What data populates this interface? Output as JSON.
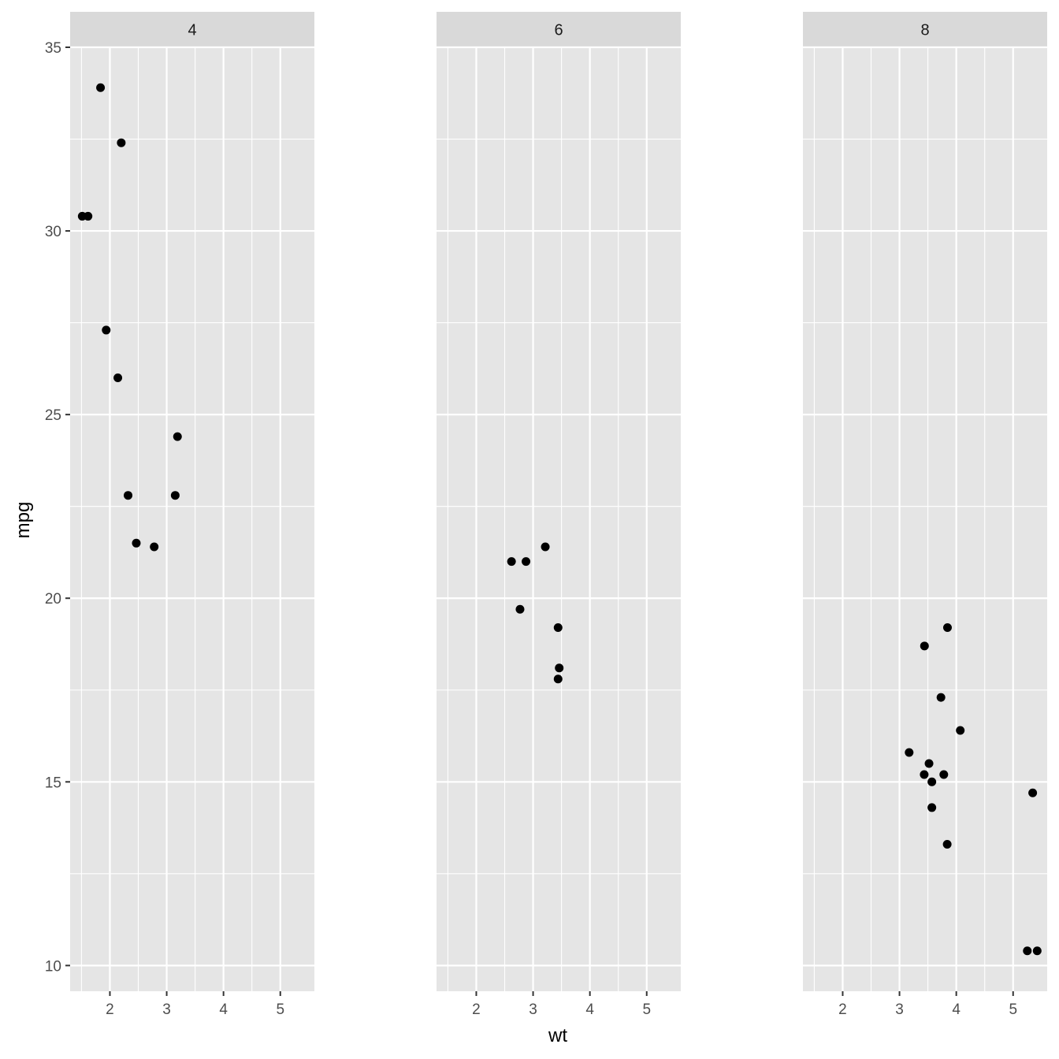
{
  "chart_data": {
    "type": "scatter",
    "facet_by": "cyl",
    "xlabel": "wt",
    "ylabel": "mpg",
    "xlim": [
      1.3,
      5.6
    ],
    "ylim": [
      9.3,
      35.0
    ],
    "x_ticks": [
      2,
      3,
      4,
      5
    ],
    "y_ticks": [
      10,
      15,
      20,
      25,
      30,
      35
    ],
    "grid": true,
    "colors": {
      "panel_bg": "#e5e5e5",
      "strip_bg": "#d9d9d9",
      "grid": "#ffffff",
      "point": "#000000"
    },
    "panels": [
      {
        "label": "4",
        "points": [
          {
            "x": 2.32,
            "y": 22.8
          },
          {
            "x": 3.19,
            "y": 24.4
          },
          {
            "x": 3.15,
            "y": 22.8
          },
          {
            "x": 2.2,
            "y": 32.4
          },
          {
            "x": 1.615,
            "y": 30.4
          },
          {
            "x": 1.835,
            "y": 33.9
          },
          {
            "x": 2.465,
            "y": 21.5
          },
          {
            "x": 1.935,
            "y": 27.3
          },
          {
            "x": 2.14,
            "y": 26.0
          },
          {
            "x": 1.513,
            "y": 30.4
          },
          {
            "x": 2.78,
            "y": 21.4
          }
        ]
      },
      {
        "label": "6",
        "points": [
          {
            "x": 2.62,
            "y": 21.0
          },
          {
            "x": 2.875,
            "y": 21.0
          },
          {
            "x": 3.215,
            "y": 21.4
          },
          {
            "x": 3.46,
            "y": 18.1
          },
          {
            "x": 3.44,
            "y": 19.2
          },
          {
            "x": 3.44,
            "y": 17.8
          },
          {
            "x": 2.77,
            "y": 19.7
          }
        ]
      },
      {
        "label": "8",
        "points": [
          {
            "x": 3.44,
            "y": 18.7
          },
          {
            "x": 3.57,
            "y": 14.3
          },
          {
            "x": 4.07,
            "y": 16.4
          },
          {
            "x": 3.73,
            "y": 17.3
          },
          {
            "x": 3.78,
            "y": 15.2
          },
          {
            "x": 5.25,
            "y": 10.4
          },
          {
            "x": 5.424,
            "y": 10.4
          },
          {
            "x": 5.345,
            "y": 14.7
          },
          {
            "x": 3.52,
            "y": 15.5
          },
          {
            "x": 3.435,
            "y": 15.2
          },
          {
            "x": 3.84,
            "y": 13.3
          },
          {
            "x": 3.845,
            "y": 19.2
          },
          {
            "x": 3.17,
            "y": 15.8
          },
          {
            "x": 3.57,
            "y": 15.0
          }
        ]
      }
    ]
  }
}
